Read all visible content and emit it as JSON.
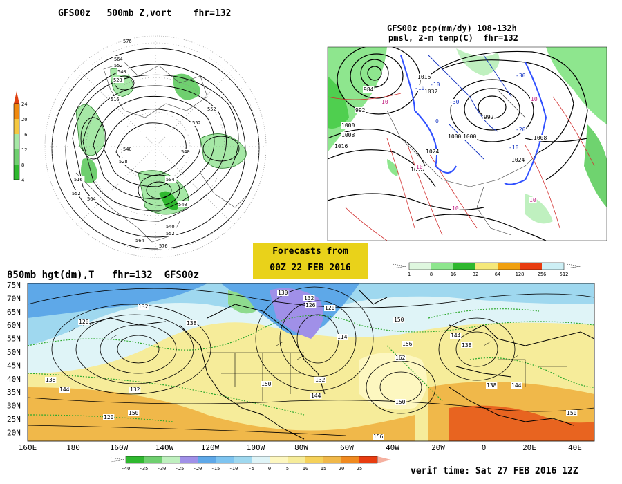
{
  "panels": {
    "p500": {
      "title": "GFS00z   500mb Z,vort    fhr=132",
      "colorbar_ticks": [
        "4",
        "8",
        "12",
        "16",
        "20",
        "24"
      ],
      "contour_labels": [
        "576",
        "564",
        "552",
        "540",
        "528",
        "516",
        "552",
        "540",
        "552",
        "540",
        "504",
        "528",
        "540",
        "552",
        "564",
        "576",
        "516",
        "564",
        "552",
        "540"
      ]
    },
    "pcp": {
      "title_line1": "GFS00z pcp(mm/dy) 108-132h",
      "title_line2": "pmsl, 2-m temp(C)  fhr=132",
      "colorbar_ticks": [
        "1",
        "8",
        "16",
        "32",
        "64",
        "128",
        "256",
        "512"
      ],
      "pressure_labels": [
        "984",
        "992",
        "1000",
        "1008",
        "1016",
        "1032",
        "1016",
        "1000",
        "992",
        "1024",
        "1016",
        "1024",
        "1000",
        "1008"
      ],
      "temp_labels": [
        "10",
        "10",
        "10",
        "-10",
        "-10",
        "-30",
        "-30",
        "-20",
        "0",
        "-10",
        "10",
        "10"
      ]
    },
    "p850": {
      "title": "850mb hgt(dm),T   fhr=132  GFS00z",
      "lat_labels": [
        "75N",
        "70N",
        "65N",
        "60N",
        "55N",
        "50N",
        "45N",
        "40N",
        "35N",
        "30N",
        "25N",
        "20N"
      ],
      "lon_labels": [
        "160E",
        "180",
        "160W",
        "140W",
        "120W",
        "100W",
        "80W",
        "60W",
        "40W",
        "20W",
        "0",
        "20E",
        "40E"
      ],
      "colorbar_ticks": [
        "-40",
        "-35",
        "-30",
        "-25",
        "-20",
        "-15",
        "-10",
        "-5",
        "0",
        "5",
        "10",
        "15",
        "20",
        "25"
      ],
      "contour_labels": [
        "120",
        "132",
        "138",
        "144",
        "132",
        "120",
        "138",
        "150",
        "130",
        "132",
        "126",
        "120",
        "114",
        "150",
        "156",
        "162",
        "150",
        "144",
        "138",
        "138",
        "144",
        "150",
        "132",
        "144",
        "150",
        "156"
      ]
    }
  },
  "forecast_box": {
    "line1": "Forecasts from",
    "line2": "00Z 22 FEB 2016",
    "color": "#e9d21a"
  },
  "verif_time": "verif time: Sat 27 FEB 2016 12Z"
}
